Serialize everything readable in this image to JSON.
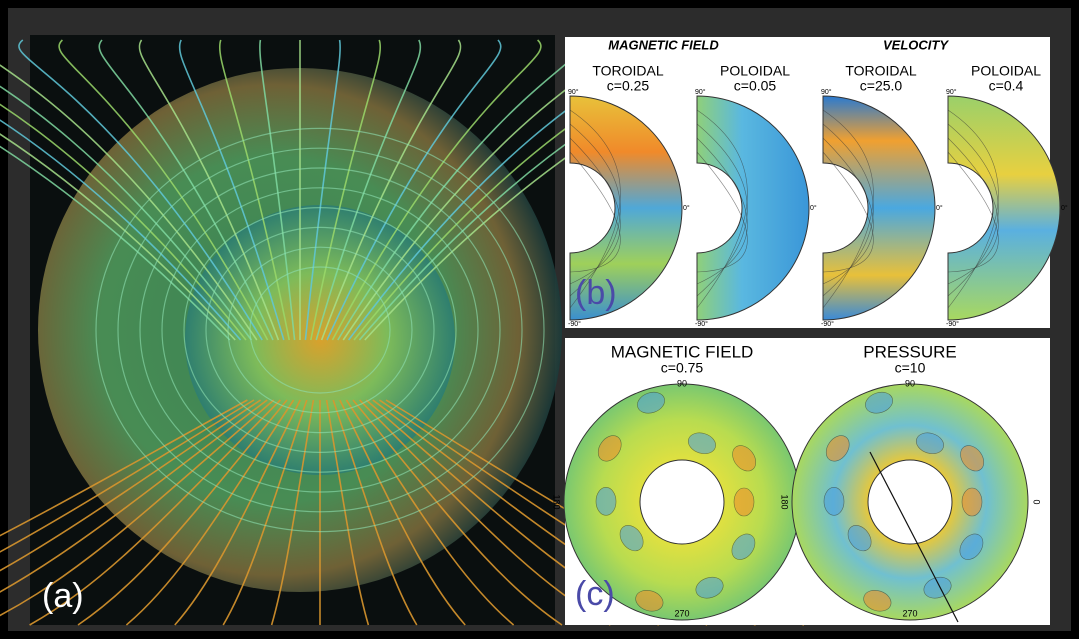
{
  "panel_a": {
    "label": "(a)"
  },
  "panel_b": {
    "label": "(b)",
    "groups": [
      {
        "title": "MAGNETIC FIELD",
        "plots": [
          {
            "component": "TOROIDAL",
            "contour": "c=0.25",
            "lat_labels": [
              "90°",
              "0°",
              "-90°"
            ]
          },
          {
            "component": "POLOIDAL",
            "contour": "c=0.05",
            "lat_labels": [
              "90°",
              "0°",
              "-90°"
            ]
          }
        ]
      },
      {
        "title": "VELOCITY",
        "plots": [
          {
            "component": "TOROIDAL",
            "contour": "c=25.0",
            "lat_labels": [
              "90°",
              "0°",
              "-90°"
            ]
          },
          {
            "component": "POLOIDAL",
            "contour": "c=0.4",
            "lat_labels": [
              "90°",
              "0°",
              "-90°"
            ]
          }
        ]
      }
    ]
  },
  "panel_c": {
    "label": "(c)",
    "plots": [
      {
        "title": "MAGNETIC FIELD",
        "contour": "c=0.75",
        "angle_labels": [
          "90",
          "180",
          "0",
          "270"
        ]
      },
      {
        "title": "PRESSURE",
        "contour": "c=10",
        "angle_labels": [
          "90",
          "180",
          "0",
          "270"
        ]
      }
    ]
  }
}
